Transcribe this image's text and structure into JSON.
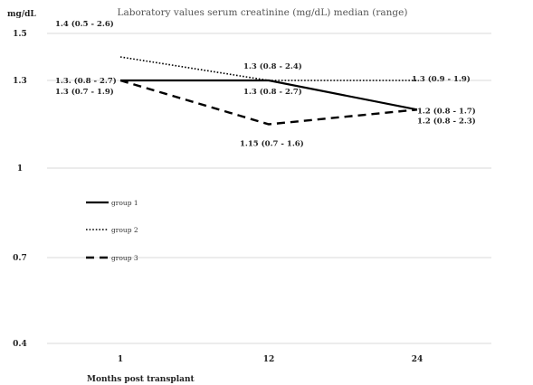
{
  "chart_data": {
    "type": "line",
    "title": "Laboratory values serum creatinine (mg/dL) median (range)",
    "ylabel": "mg/dL",
    "xlabel": "Months post transplant",
    "categories": [
      "1",
      "12",
      "24"
    ],
    "ylim": [
      0.4,
      1.5
    ],
    "yticks": [
      {
        "value": 1.5,
        "label": "1.5"
      },
      {
        "value": 1.3,
        "label": "1.3"
      },
      {
        "value": 1.0,
        "label": "1"
      },
      {
        "value": 0.7,
        "label": "0.7"
      },
      {
        "value": 0.4,
        "label": "0.4"
      }
    ],
    "grid": true,
    "legend_position": "left",
    "series": [
      {
        "name": "group 1",
        "style": "solid",
        "values": [
          1.3,
          1.3,
          1.2
        ],
        "labels": [
          "1.3. (0.8 - 2.7)",
          "1.3 (0.8 - 2.7)",
          "1.2 (0.8 - 1.7)"
        ]
      },
      {
        "name": "group 2",
        "style": "dotted",
        "values": [
          1.4,
          1.3,
          1.3
        ],
        "labels": [
          "1.4 (0.5 - 2.6)",
          "1.3 (0.8 - 2.4)",
          "1.3 (0.9 - 1.9)"
        ]
      },
      {
        "name": "group 3",
        "style": "dashed",
        "values": [
          1.3,
          1.15,
          1.2
        ],
        "labels": [
          "1.3 (0.7 - 1.9)",
          "1.15 (0.7 - 1.6)",
          "1.2 (0.8 - 2.3)"
        ]
      }
    ]
  }
}
